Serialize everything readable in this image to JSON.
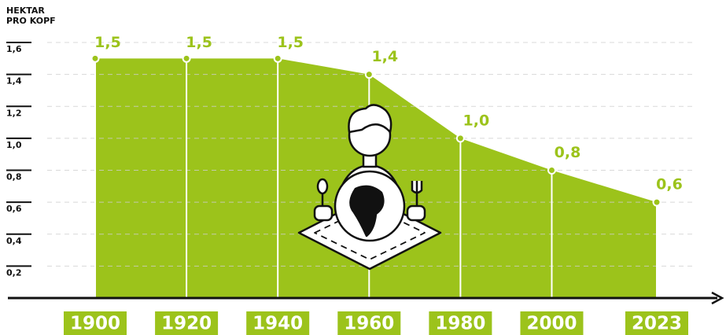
{
  "chart_data": {
    "type": "area",
    "y_title": [
      "HEKTAR",
      "PRO KOPF"
    ],
    "x": [
      1900,
      1920,
      1940,
      1960,
      1980,
      2000,
      2023
    ],
    "values": [
      1.5,
      1.5,
      1.5,
      1.4,
      1.0,
      0.8,
      0.6
    ],
    "value_labels": [
      "1,5",
      "1,5",
      "1,5",
      "1,4",
      "1,0",
      "0,8",
      "0,6"
    ],
    "color": "#9cc31b",
    "xlim": [
      1900,
      2023
    ],
    "ylim": [
      0,
      1.6
    ],
    "yticks": [
      {
        "value": 0.2,
        "label": "0,2"
      },
      {
        "value": 0.4,
        "label": "0,4"
      },
      {
        "value": 0.6,
        "label": "0,6"
      },
      {
        "value": 0.8,
        "label": "0,8"
      },
      {
        "value": 1.0,
        "label": "1,0"
      },
      {
        "value": 1.2,
        "label": "1,2"
      },
      {
        "value": 1.4,
        "label": "1,4"
      },
      {
        "value": 1.6,
        "label": "1,6"
      }
    ],
    "grid": true
  }
}
